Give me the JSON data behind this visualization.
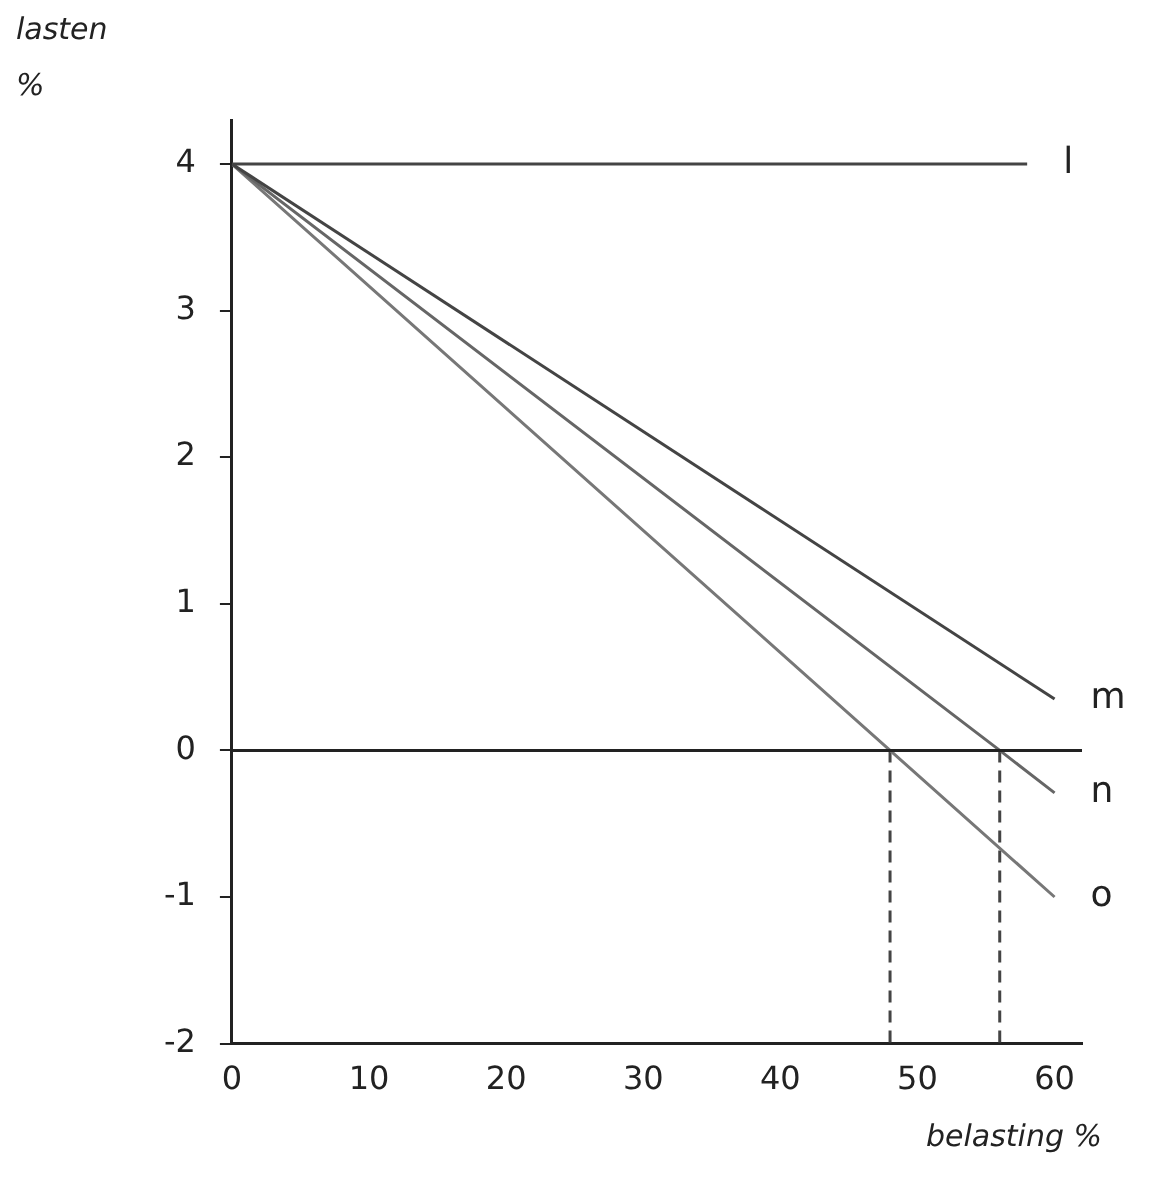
{
  "chart_data": {
    "type": "line",
    "xlabel": "belasting %",
    "ylabel": "lasten\n%",
    "xlim": [
      0,
      62
    ],
    "ylim": [
      -2,
      4.3
    ],
    "xticks": [
      0,
      10,
      20,
      30,
      40,
      50,
      60
    ],
    "yticks": [
      -2,
      -1,
      0,
      1,
      2,
      3,
      4
    ],
    "marker": "none",
    "legend": false,
    "ref_lines": [
      {
        "axis": "y",
        "value": 0,
        "color": "#222222"
      }
    ],
    "series": [
      {
        "name": "l",
        "color": "#444444",
        "x": [
          0,
          58
        ],
        "values": [
          4,
          4
        ]
      },
      {
        "name": "m",
        "color": "#444444",
        "x": [
          0,
          60
        ],
        "values": [
          4,
          0.35
        ]
      },
      {
        "name": "n",
        "color": "#666666",
        "x": [
          0,
          56,
          60
        ],
        "values": [
          4,
          0,
          -0.29
        ]
      },
      {
        "name": "o",
        "color": "#777777",
        "x": [
          0,
          48,
          60
        ],
        "values": [
          4,
          0,
          -1
        ]
      },
      {
        "color": "#444444",
        "line_style": "dashed",
        "x": [
          48,
          48
        ],
        "values": [
          0,
          -2
        ]
      },
      {
        "color": "#444444",
        "line_style": "dashed",
        "x": [
          56,
          56
        ],
        "values": [
          0,
          -2
        ]
      }
    ]
  }
}
